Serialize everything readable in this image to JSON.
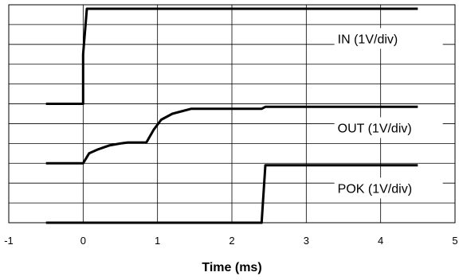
{
  "chart_data": {
    "type": "line",
    "xlabel": "Time (ms)",
    "xlim": [
      -1,
      5
    ],
    "x_ticks": [
      "-1",
      "0",
      "1",
      "2",
      "3",
      "4",
      "5"
    ],
    "ylim": [
      0,
      11
    ],
    "y_grid_divisions": 11,
    "grid": "horizontal and vertical",
    "series": [
      {
        "name": "IN (1V/div)",
        "points": [
          [
            -0.5,
            6
          ],
          [
            0.0,
            6
          ],
          [
            0.0,
            8.5
          ],
          [
            0.05,
            10.8
          ],
          [
            0.1,
            10.8
          ],
          [
            4.5,
            10.8
          ]
        ]
      },
      {
        "name": "OUT (1V/div)",
        "points": [
          [
            -0.5,
            3
          ],
          [
            0.0,
            3
          ],
          [
            0.08,
            3.5
          ],
          [
            0.2,
            3.7
          ],
          [
            0.35,
            3.9
          ],
          [
            0.5,
            4.0
          ],
          [
            0.6,
            4.05
          ],
          [
            0.85,
            4.05
          ],
          [
            0.95,
            4.7
          ],
          [
            1.05,
            5.2
          ],
          [
            1.2,
            5.5
          ],
          [
            1.3,
            5.6
          ],
          [
            1.45,
            5.75
          ],
          [
            2.4,
            5.75
          ],
          [
            2.45,
            5.85
          ],
          [
            4.5,
            5.85
          ]
        ]
      },
      {
        "name": "POK (1V/div)",
        "points": [
          [
            -0.5,
            0
          ],
          [
            2.4,
            0
          ],
          [
            2.45,
            2.9
          ],
          [
            4.5,
            2.9
          ]
        ]
      }
    ]
  }
}
